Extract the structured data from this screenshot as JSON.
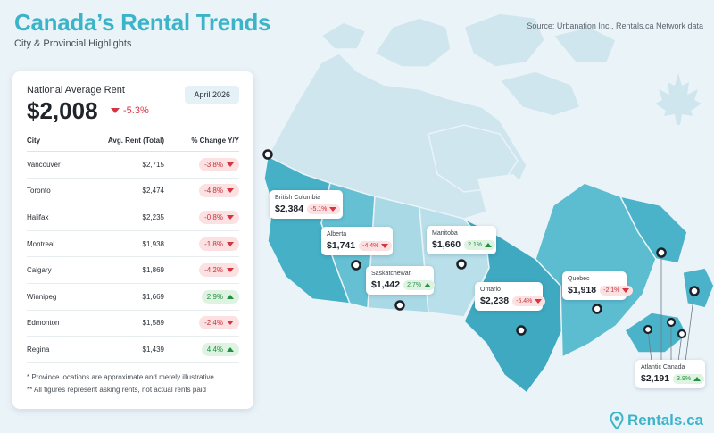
{
  "header": {
    "title": "Canada’s Rental Trends",
    "subtitle": "City & Provincial Highlights",
    "source": "Source: Urbanation Inc., Rentals.ca Network data"
  },
  "national": {
    "label": "National Average Rent",
    "value": "$2,008",
    "change": "-5.3%",
    "date": "April 2026"
  },
  "table": {
    "headers": [
      "City",
      "Avg. Rent (Total)",
      "% Change Y/Y"
    ],
    "rows": [
      {
        "city": "Vancouver",
        "rent": "$2,715",
        "change": "-3.8%",
        "dir": "down"
      },
      {
        "city": "Toronto",
        "rent": "$2,474",
        "change": "-4.8%",
        "dir": "down"
      },
      {
        "city": "Halifax",
        "rent": "$2,235",
        "change": "-0.8%",
        "dir": "down"
      },
      {
        "city": "Montreal",
        "rent": "$1,938",
        "change": "-1.8%",
        "dir": "down"
      },
      {
        "city": "Calgary",
        "rent": "$1,869",
        "change": "-4.2%",
        "dir": "down"
      },
      {
        "city": "Winnipeg",
        "rent": "$1,669",
        "change": "2.9%",
        "dir": "up"
      },
      {
        "city": "Edmonton",
        "rent": "$1,589",
        "change": "-2.4%",
        "dir": "down"
      },
      {
        "city": "Regina",
        "rent": "$1,439",
        "change": "4.4%",
        "dir": "up"
      }
    ]
  },
  "notes": [
    "* Province locations are approximate and merely illustrative",
    "** All figures represent asking rents, not actual rents paid"
  ],
  "provinces": [
    {
      "name": "British Columbia",
      "value": "$2,384",
      "change": "-5.1%",
      "dir": "down"
    },
    {
      "name": "Alberta",
      "value": "$1,741",
      "change": "-4.4%",
      "dir": "down"
    },
    {
      "name": "Saskatchewan",
      "value": "$1,442",
      "change": "2.7%",
      "dir": "up"
    },
    {
      "name": "Manitoba",
      "value": "$1,660",
      "change": "2.1%",
      "dir": "up"
    },
    {
      "name": "Ontario",
      "value": "$2,238",
      "change": "-5.4%",
      "dir": "down"
    },
    {
      "name": "Quebec",
      "value": "$1,918",
      "change": "-2.1%",
      "dir": "down"
    },
    {
      "name": "Atlantic Canada",
      "value": "$2,191",
      "change": "3.9%",
      "dir": "up"
    }
  ],
  "brand": {
    "name": "Rentals.ca",
    "icon": "location-pin-icon"
  },
  "colors": {
    "accent": "#3bb4c9",
    "negative": "#d6343f",
    "positive": "#23913e",
    "land_light": "#cfe6ef",
    "land_dark": "#45b0c6"
  }
}
